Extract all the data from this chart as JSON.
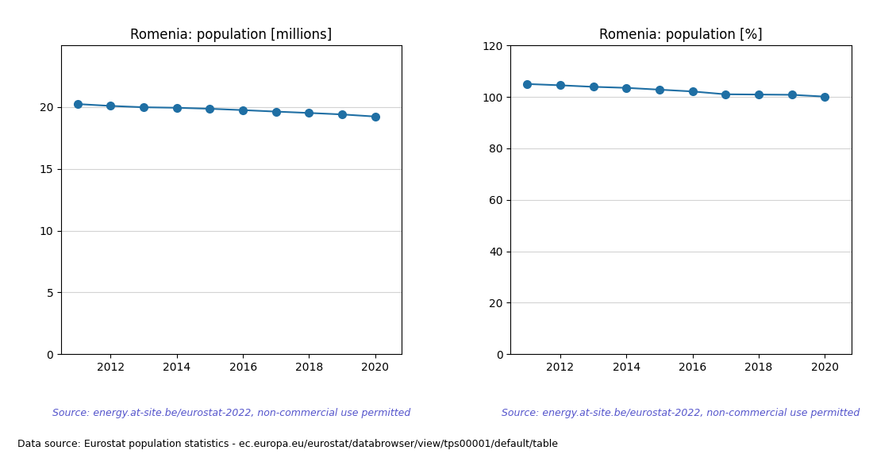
{
  "years": [
    2011,
    2012,
    2013,
    2014,
    2015,
    2016,
    2017,
    2018,
    2019,
    2020
  ],
  "population_millions": [
    20.25,
    20.1,
    19.99,
    19.95,
    19.87,
    19.76,
    19.64,
    19.53,
    19.41,
    19.24
  ],
  "population_pct": [
    105.0,
    104.5,
    103.9,
    103.5,
    102.8,
    102.1,
    101.0,
    100.9,
    100.8,
    100.1
  ],
  "title_left": "Romenia: population [millions]",
  "title_right": "Romenia: population [%]",
  "source_text": "Source: energy.at-site.be/eurostat-2022, non-commercial use permitted",
  "footer_text": "Data source: Eurostat population statistics - ec.europa.eu/eurostat/databrowser/view/tps00001/default/table",
  "line_color": "#1f6fa4",
  "source_color": "#5555cc",
  "ylim_left": [
    0,
    25
  ],
  "ylim_right": [
    0,
    120
  ],
  "yticks_left": [
    0,
    5,
    10,
    15,
    20
  ],
  "yticks_right": [
    0,
    20,
    40,
    60,
    80,
    100,
    120
  ],
  "xticks_shown": [
    2012,
    2014,
    2016,
    2018,
    2020
  ],
  "xlim": [
    2010.5,
    2020.8
  ],
  "marker_size": 7,
  "source_fontsize": 9,
  "footer_fontsize": 9,
  "title_fontsize": 12
}
